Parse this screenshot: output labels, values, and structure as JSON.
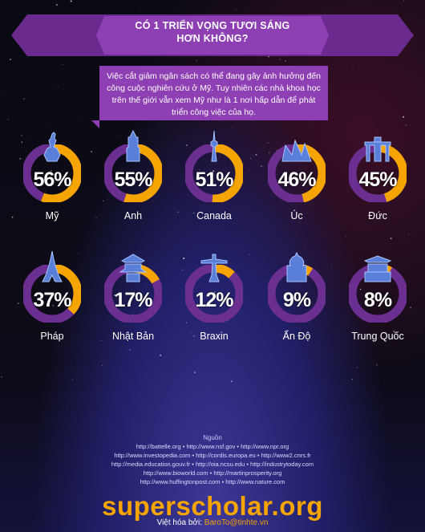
{
  "title": {
    "line1": "CÓ 1 TRIỂN VỌNG TƯƠI SÁNG",
    "line2": "HƠN KHÔNG?"
  },
  "intro": "Việc cắt giảm ngân sách có thể đang gây ảnh hưởng đến công cuộc nghiên cứu ở Mỹ. Tuy nhiên các nhà khoa học trên thế giới vẫn xem Mỹ như là 1 nơi hấp dẫn để phát triển công việc của họ.",
  "colors": {
    "ring_orange": "#f6a400",
    "ring_purple": "#6b2f91",
    "accent": "#8d3fb3"
  },
  "countries": [
    {
      "name": "Mỹ",
      "percent": 56,
      "percent_label": "56%",
      "icon": "statue-of-liberty-icon"
    },
    {
      "name": "Anh",
      "percent": 55,
      "percent_label": "55%",
      "icon": "big-ben-icon"
    },
    {
      "name": "Canada",
      "percent": 51,
      "percent_label": "51%",
      "icon": "cn-tower-icon"
    },
    {
      "name": "Úc",
      "percent": 46,
      "percent_label": "46%",
      "icon": "sydney-opera-house-icon"
    },
    {
      "name": "Đức",
      "percent": 45,
      "percent_label": "45%",
      "icon": "brandenburg-gate-icon"
    },
    {
      "name": "Pháp",
      "percent": 37,
      "percent_label": "37%",
      "icon": "eiffel-tower-icon"
    },
    {
      "name": "Nhật Bản",
      "percent": 17,
      "percent_label": "17%",
      "icon": "pagoda-icon"
    },
    {
      "name": "Braxin",
      "percent": 12,
      "percent_label": "12%",
      "icon": "christ-the-redeemer-icon"
    },
    {
      "name": "Ấn Độ",
      "percent": 9,
      "percent_label": "9%",
      "icon": "taj-mahal-icon"
    },
    {
      "name": "Trung Quốc",
      "percent": 8,
      "percent_label": "8%",
      "icon": "forbidden-city-icon"
    }
  ],
  "sources": {
    "heading": "Nguồn",
    "lines": [
      "http://battelle.org • http://www.nsf.gov • http://www.npr.org",
      "http://www.investopedia.com • http://cordis.europa.eu • http://www2.cnrs.fr",
      "http://media.education.gouv.fr • http://oia.ncsu.edu • http://industrytoday.com",
      "http://www.bioworld.com • http://martinprosperity.org",
      "http://www.huffingtonpost.com • http://www.nature.com"
    ]
  },
  "brand": "superscholar.org",
  "credit": {
    "prefix": "Việt hóa bởi: ",
    "author": "BaroTo@tinhte.vn"
  }
}
